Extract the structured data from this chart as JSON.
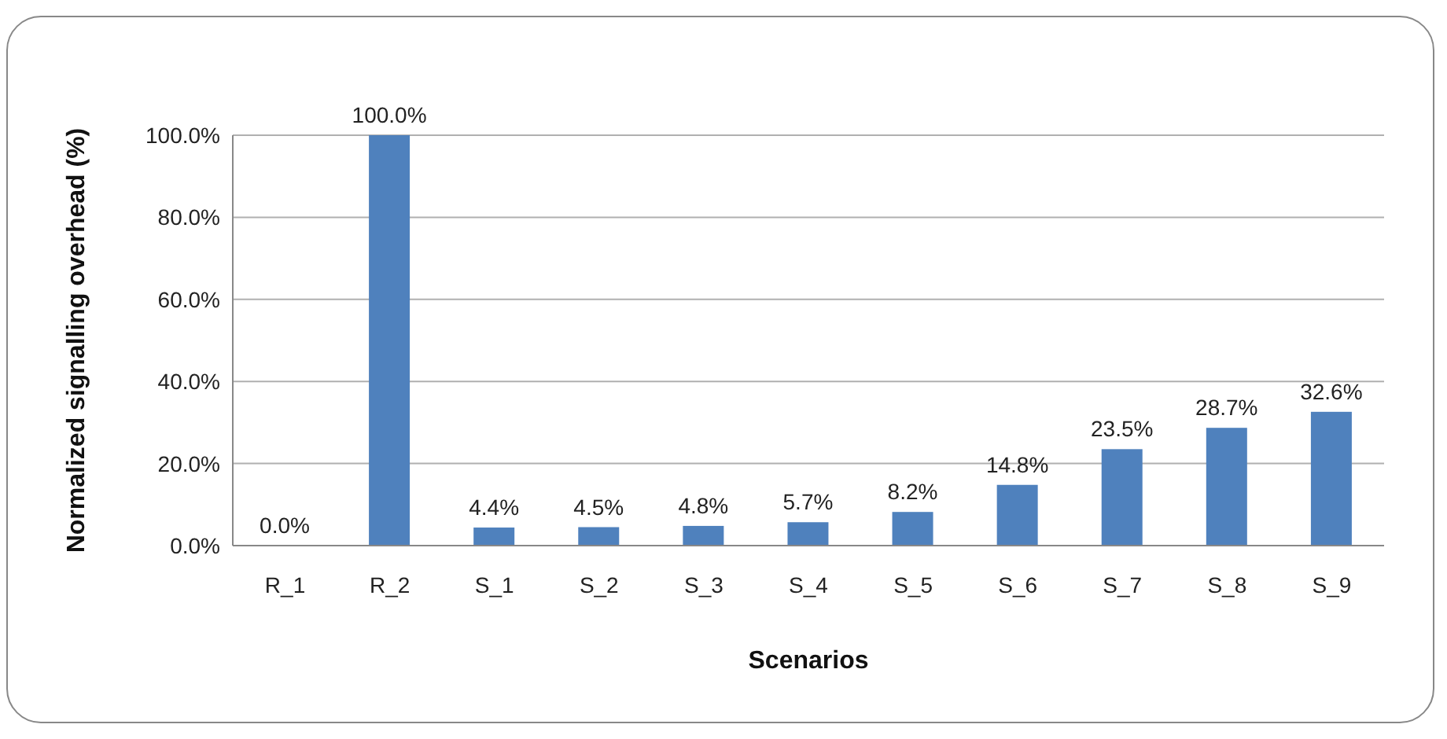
{
  "chart_data": {
    "type": "bar",
    "xlabel": "Scenarios",
    "ylabel": "Normalized signalling overhead  (%)",
    "categories": [
      "R_1",
      "R_2",
      "S_1",
      "S_2",
      "S_3",
      "S_4",
      "S_5",
      "S_6",
      "S_7",
      "S_8",
      "S_9"
    ],
    "values": [
      0.0,
      100.0,
      4.4,
      4.5,
      4.8,
      5.7,
      8.2,
      14.8,
      23.5,
      28.7,
      32.6
    ],
    "value_labels": [
      "0.0%",
      "100.0%",
      "4.4%",
      "4.5%",
      "4.8%",
      "5.7%",
      "8.2%",
      "14.8%",
      "23.5%",
      "28.7%",
      "32.6%"
    ],
    "color": "#4f81bd",
    "ylim": [
      0,
      100
    ],
    "yticks": [
      {
        "value": 0,
        "label": "0.0%"
      },
      {
        "value": 20,
        "label": "20.0%"
      },
      {
        "value": 40,
        "label": "40.0%"
      },
      {
        "value": 60,
        "label": "60.0%"
      },
      {
        "value": 80,
        "label": "80.0%"
      },
      {
        "value": 100,
        "label": "100.0%"
      }
    ],
    "grid": "y",
    "legend": false
  }
}
